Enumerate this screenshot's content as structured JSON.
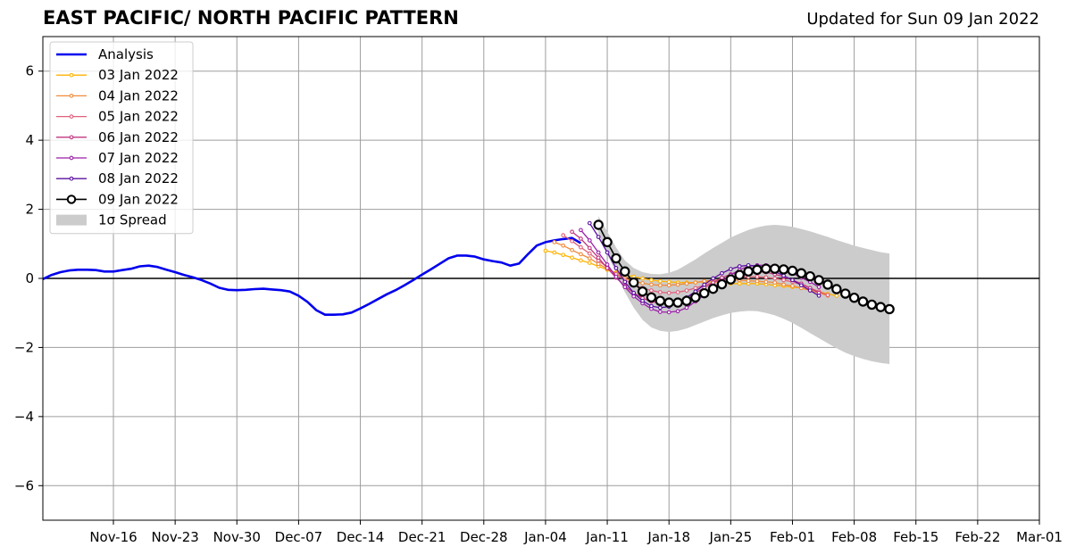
{
  "header": {
    "title": "EAST PACIFIC/ NORTH PACIFIC PATTERN",
    "updated": "Updated for Sun 09 Jan 2022"
  },
  "chart_data": {
    "type": "line",
    "title": "EAST PACIFIC/ NORTH PACIFIC PATTERN",
    "subtitle": "Updated for Sun 09 Jan 2022",
    "xlabel": "",
    "ylabel": "",
    "x_start": "2021-11-08",
    "xlim": [
      "2021-11-08",
      "2022-03-01"
    ],
    "ylim": [
      -7,
      7
    ],
    "grid": true,
    "legend_position": "top-left",
    "x_ticks": [
      {
        "date": "2021-11-16",
        "label": "Nov-16"
      },
      {
        "date": "2021-11-23",
        "label": "Nov-23"
      },
      {
        "date": "2021-11-30",
        "label": "Nov-30"
      },
      {
        "date": "2021-12-07",
        "label": "Dec-07"
      },
      {
        "date": "2021-12-14",
        "label": "Dec-14"
      },
      {
        "date": "2021-12-21",
        "label": "Dec-21"
      },
      {
        "date": "2021-12-28",
        "label": "Dec-28"
      },
      {
        "date": "2022-01-04",
        "label": "Jan-04"
      },
      {
        "date": "2022-01-11",
        "label": "Jan-11"
      },
      {
        "date": "2022-01-18",
        "label": "Jan-18"
      },
      {
        "date": "2022-01-25",
        "label": "Jan-25"
      },
      {
        "date": "2022-02-01",
        "label": "Feb-01"
      },
      {
        "date": "2022-02-08",
        "label": "Feb-08"
      },
      {
        "date": "2022-02-15",
        "label": "Feb-15"
      },
      {
        "date": "2022-02-22",
        "label": "Feb-22"
      },
      {
        "date": "2022-03-01",
        "label": "Mar-01"
      }
    ],
    "y_ticks": [
      -6,
      -4,
      -2,
      0,
      2,
      4,
      6
    ],
    "analysis": {
      "name": "Analysis",
      "color": "#0000ee",
      "start_date": "2021-11-08",
      "values": [
        -0.02,
        0.1,
        0.18,
        0.23,
        0.25,
        0.25,
        0.24,
        0.2,
        0.2,
        0.24,
        0.28,
        0.35,
        0.37,
        0.33,
        0.25,
        0.18,
        0.1,
        0.03,
        -0.05,
        -0.15,
        -0.27,
        -0.33,
        -0.34,
        -0.33,
        -0.31,
        -0.3,
        -0.32,
        -0.34,
        -0.38,
        -0.5,
        -0.68,
        -0.92,
        -1.05,
        -1.05,
        -1.04,
        -0.99,
        -0.87,
        -0.74,
        -0.6,
        -0.46,
        -0.34,
        -0.2,
        -0.05,
        0.11,
        0.26,
        0.42,
        0.58,
        0.66,
        0.66,
        0.63,
        0.55,
        0.5,
        0.46,
        0.37,
        0.43,
        0.7,
        0.95,
        1.05,
        1.1,
        1.14,
        1.17,
        1.02
      ]
    },
    "forecasts": [
      {
        "name": "03 Jan 2022",
        "color": "#ffb300",
        "start_date": "2022-01-04",
        "values": [
          0.8,
          0.75,
          0.68,
          0.6,
          0.52,
          0.45,
          0.35,
          0.25,
          0.17,
          0.1,
          0.05,
          0.0,
          -0.05,
          -0.08,
          -0.1,
          -0.12,
          -0.12,
          -0.12,
          -0.1,
          -0.1,
          -0.12,
          -0.15,
          -0.15,
          -0.15,
          -0.15,
          -0.17,
          -0.2,
          -0.22,
          -0.25,
          -0.28,
          -0.32,
          -0.38,
          -0.45,
          -0.5
        ]
      },
      {
        "name": "04 Jan 2022",
        "color": "#f08a3c",
        "start_date": "2022-01-05",
        "values": [
          1.05,
          0.95,
          0.82,
          0.7,
          0.58,
          0.42,
          0.28,
          0.14,
          0.0,
          -0.08,
          -0.14,
          -0.18,
          -0.2,
          -0.2,
          -0.18,
          -0.15,
          -0.12,
          -0.08,
          -0.05,
          -0.05,
          -0.05,
          -0.05,
          -0.07,
          -0.08,
          -0.1,
          -0.12,
          -0.18,
          -0.22,
          -0.28,
          -0.35,
          -0.42,
          -0.5
        ]
      },
      {
        "name": "05 Jan 2022",
        "color": "#e0607a",
        "start_date": "2022-01-06",
        "values": [
          1.25,
          1.08,
          0.9,
          0.72,
          0.52,
          0.32,
          0.12,
          -0.05,
          -0.18,
          -0.28,
          -0.35,
          -0.4,
          -0.42,
          -0.4,
          -0.35,
          -0.28,
          -0.2,
          -0.12,
          -0.05,
          0.0,
          0.02,
          0.05,
          0.05,
          0.03,
          0.0,
          -0.05,
          -0.1,
          -0.18,
          -0.28,
          -0.38,
          -0.48
        ]
      },
      {
        "name": "06 Jan 2022",
        "color": "#c0357f",
        "start_date": "2022-01-07",
        "values": [
          1.35,
          1.15,
          0.88,
          0.6,
          0.3,
          0.02,
          -0.22,
          -0.42,
          -0.57,
          -0.67,
          -0.72,
          -0.72,
          -0.67,
          -0.57,
          -0.42,
          -0.27,
          -0.12,
          0.02,
          0.12,
          0.18,
          0.2,
          0.2,
          0.18,
          0.12,
          0.05,
          -0.05,
          -0.15,
          -0.28,
          -0.42
        ]
      },
      {
        "name": "07 Jan 2022",
        "color": "#9a1fa8",
        "start_date": "2022-01-08",
        "values": [
          1.4,
          1.1,
          0.75,
          0.4,
          0.05,
          -0.25,
          -0.52,
          -0.72,
          -0.88,
          -0.97,
          -0.98,
          -0.95,
          -0.85,
          -0.67,
          -0.48,
          -0.28,
          -0.08,
          0.1,
          0.25,
          0.35,
          0.38,
          0.38,
          0.33,
          0.25,
          0.15,
          0.02,
          -0.1,
          -0.25
        ]
      },
      {
        "name": "08 Jan 2022",
        "color": "#5a10a0",
        "start_date": "2022-01-09",
        "values": [
          1.6,
          1.2,
          0.75,
          0.3,
          -0.1,
          -0.42,
          -0.65,
          -0.8,
          -0.85,
          -0.82,
          -0.7,
          -0.55,
          -0.38,
          -0.18,
          0.0,
          0.15,
          0.27,
          0.35,
          0.38,
          0.36,
          0.3,
          0.2,
          0.08,
          -0.05,
          -0.2,
          -0.35,
          -0.5
        ]
      },
      {
        "name": "09 Jan 2022",
        "color": "#000000",
        "start_date": "2022-01-10",
        "values": [
          1.55,
          1.05,
          0.58,
          0.2,
          -0.12,
          -0.38,
          -0.55,
          -0.65,
          -0.7,
          -0.7,
          -0.65,
          -0.55,
          -0.43,
          -0.3,
          -0.17,
          -0.03,
          0.1,
          0.2,
          0.25,
          0.28,
          0.28,
          0.26,
          0.22,
          0.15,
          0.06,
          -0.05,
          -0.18,
          -0.31,
          -0.44,
          -0.56,
          -0.67,
          -0.76,
          -0.83,
          -0.89
        ]
      }
    ],
    "spread": {
      "name": "1σ Spread",
      "color": "#cccccc",
      "start_date": "2022-01-10",
      "upper": [
        1.8,
        1.35,
        0.9,
        0.52,
        0.3,
        0.18,
        0.13,
        0.12,
        0.16,
        0.25,
        0.4,
        0.55,
        0.72,
        0.88,
        1.03,
        1.18,
        1.3,
        1.4,
        1.48,
        1.53,
        1.55,
        1.53,
        1.49,
        1.43,
        1.36,
        1.28,
        1.2,
        1.11,
        1.03,
        0.95,
        0.88,
        0.82,
        0.76,
        0.72
      ],
      "lower": [
        1.3,
        0.7,
        0.15,
        -0.4,
        -0.85,
        -1.2,
        -1.42,
        -1.52,
        -1.55,
        -1.52,
        -1.45,
        -1.35,
        -1.25,
        -1.15,
        -1.07,
        -1.0,
        -0.96,
        -0.94,
        -0.95,
        -1.0,
        -1.07,
        -1.17,
        -1.29,
        -1.43,
        -1.58,
        -1.73,
        -1.88,
        -2.02,
        -2.15,
        -2.25,
        -2.33,
        -2.4,
        -2.45,
        -2.48
      ]
    }
  }
}
